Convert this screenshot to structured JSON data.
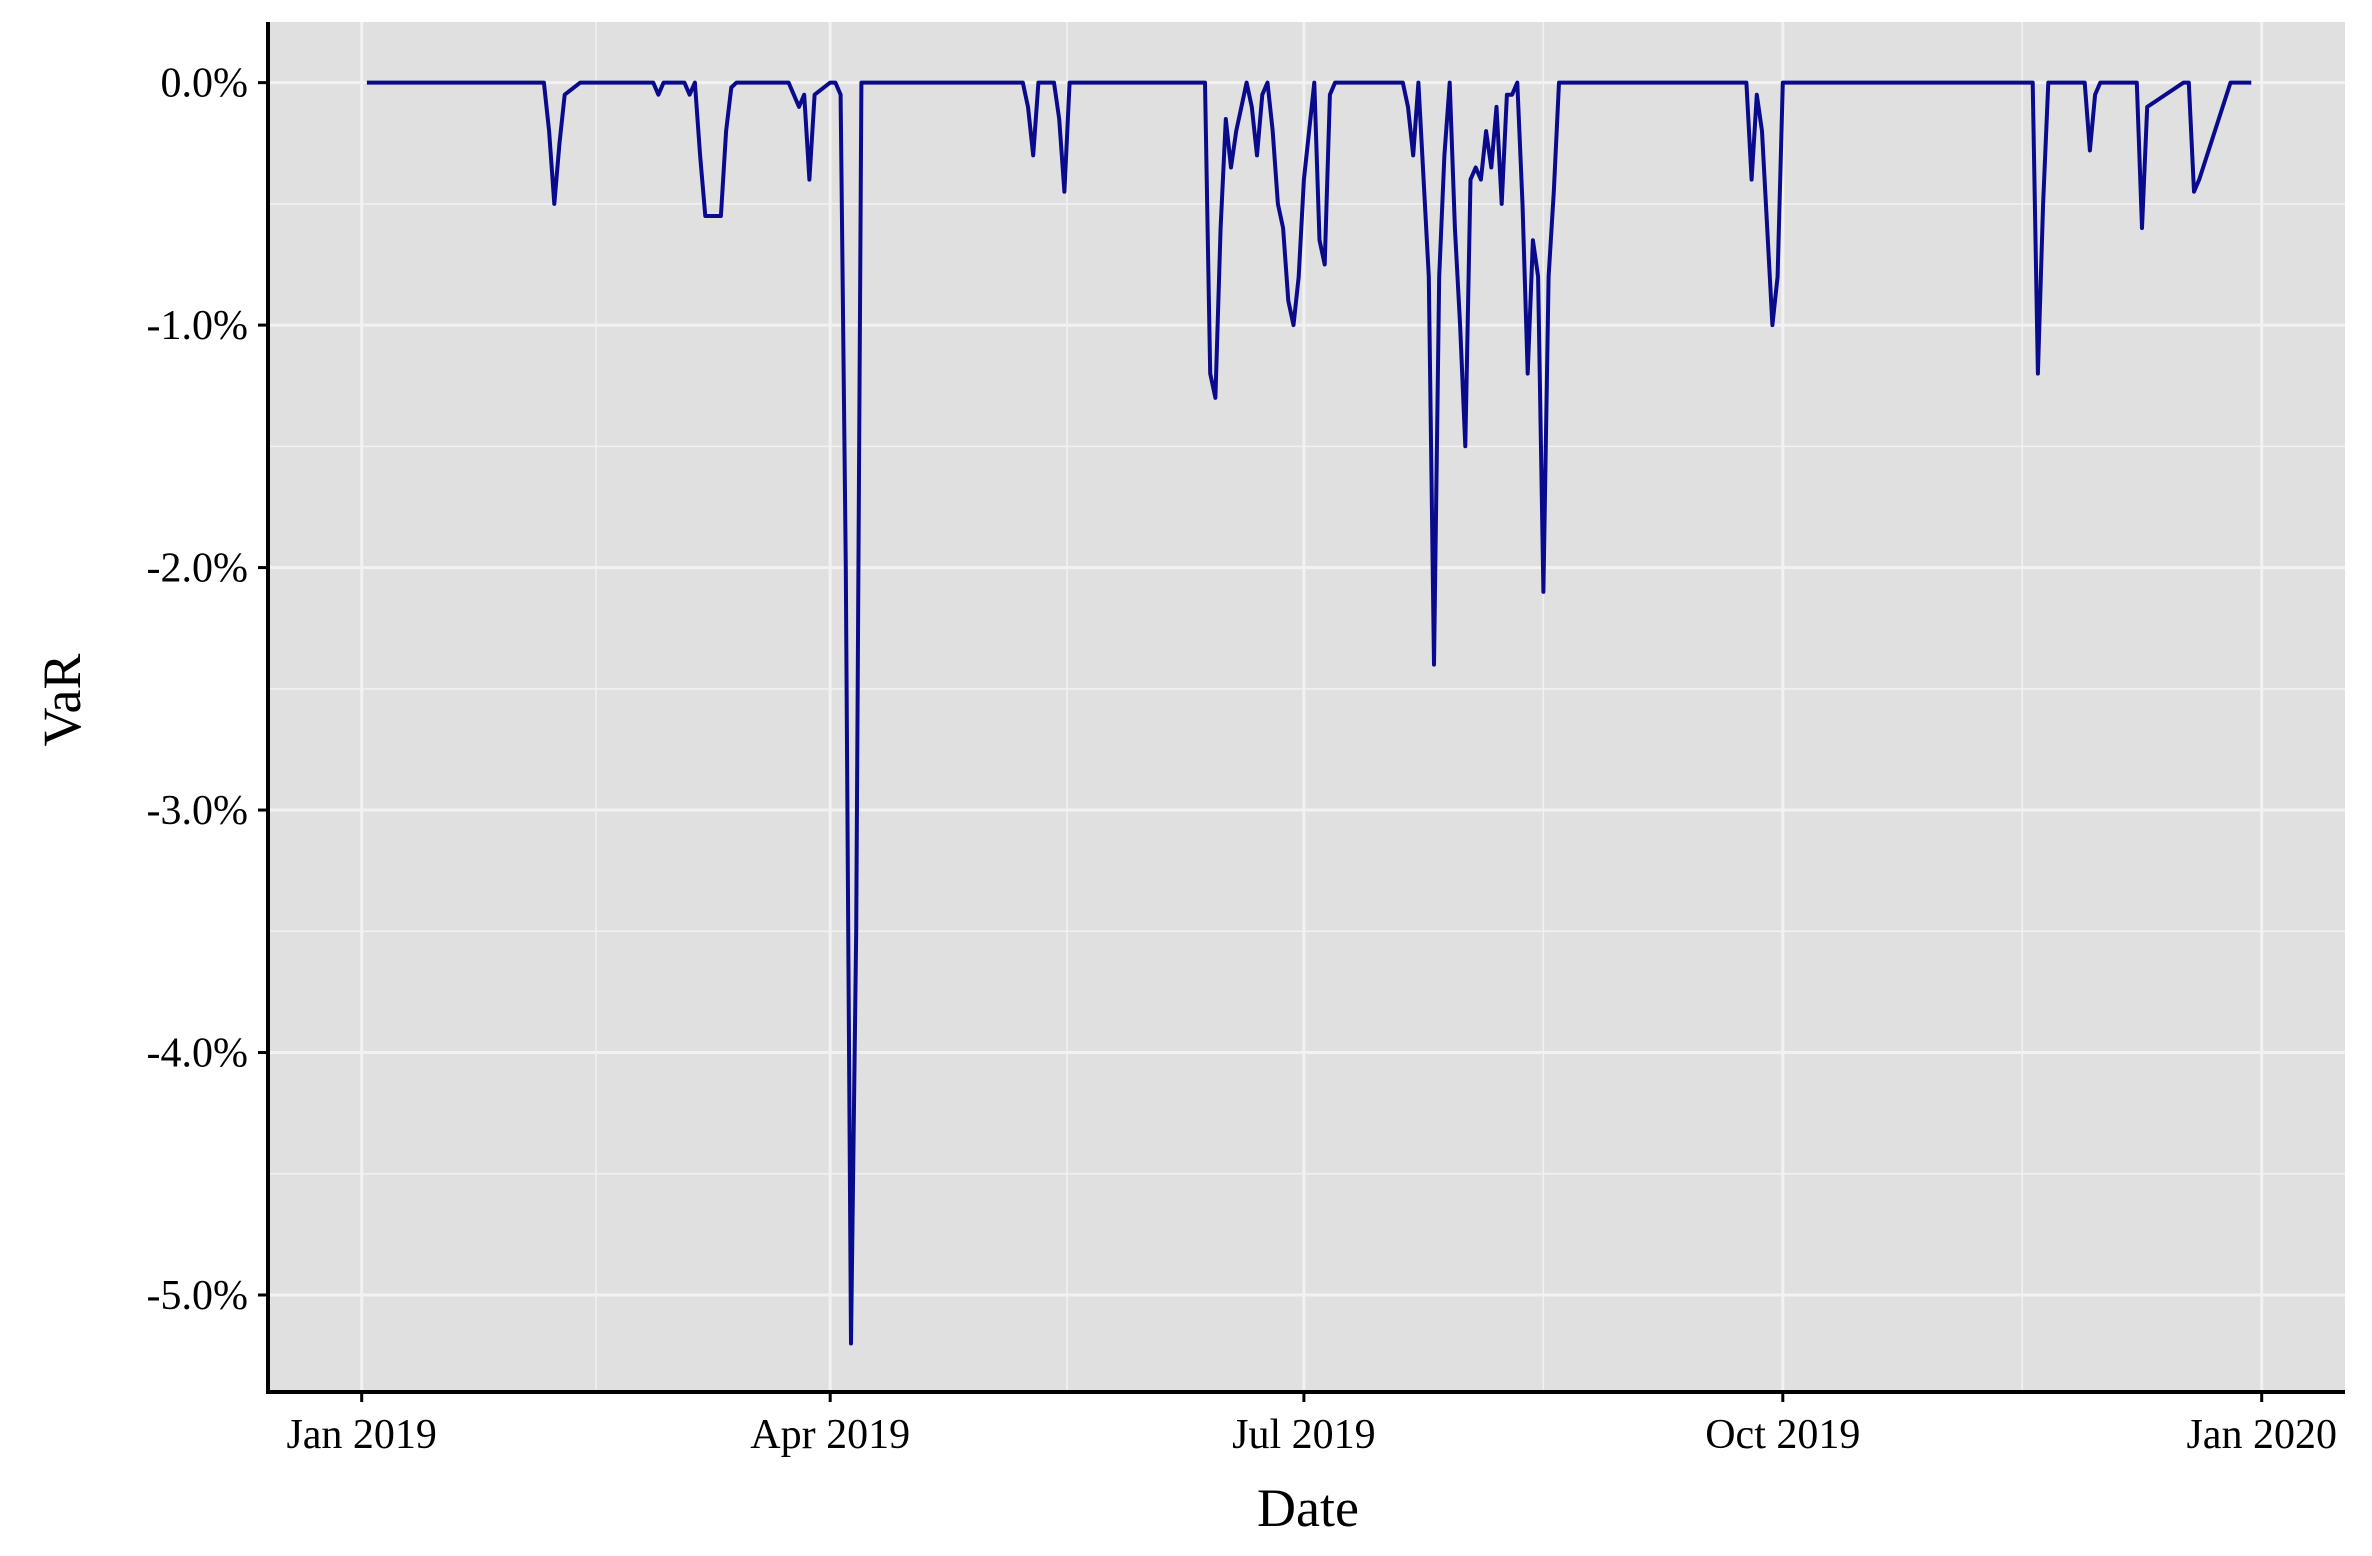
{
  "chart_data": {
    "type": "line",
    "title": "",
    "xlabel": "Date",
    "ylabel": "VaR",
    "x_ticks": [
      "Jan 2019",
      "Apr 2019",
      "Jul 2019",
      "Oct 2019",
      "Jan 2020"
    ],
    "y_ticks": [
      "0.0%",
      "-1.0%",
      "-2.0%",
      "-3.0%",
      "-4.0%",
      "-5.0%"
    ],
    "ylim": [
      -5.4,
      0.25
    ],
    "xlim": [
      "2018-12-14",
      "2020-01-17"
    ],
    "grid": true,
    "colors": {
      "panel": "#e0e0e0",
      "grid": "#f2f2f2",
      "line": "#0a0a8c"
    },
    "series": [
      {
        "x": [
          "2019-01-02",
          "2019-02-05",
          "2019-02-06",
          "2019-02-07",
          "2019-02-08",
          "2019-02-09",
          "2019-02-12",
          "2019-02-26",
          "2019-02-27",
          "2019-02-28",
          "2019-03-04",
          "2019-03-05",
          "2019-03-06",
          "2019-03-07",
          "2019-03-08",
          "2019-03-11",
          "2019-03-12",
          "2019-03-13",
          "2019-03-14",
          "2019-03-24",
          "2019-03-25",
          "2019-03-26",
          "2019-03-27",
          "2019-03-28",
          "2019-03-29",
          "2019-04-01",
          "2019-04-02",
          "2019-04-03",
          "2019-04-04",
          "2019-04-05",
          "2019-04-06",
          "2019-04-07",
          "2019-05-08",
          "2019-05-09",
          "2019-05-10",
          "2019-05-11",
          "2019-05-14",
          "2019-05-15",
          "2019-05-16",
          "2019-05-17",
          "2019-06-12",
          "2019-06-13",
          "2019-06-14",
          "2019-06-15",
          "2019-06-16",
          "2019-06-17",
          "2019-06-18",
          "2019-06-19",
          "2019-06-20",
          "2019-06-21",
          "2019-06-22",
          "2019-06-23",
          "2019-06-24",
          "2019-06-25",
          "2019-06-26",
          "2019-06-27",
          "2019-06-28",
          "2019-06-29",
          "2019-06-30",
          "2019-07-01",
          "2019-07-02",
          "2019-07-03",
          "2019-07-04",
          "2019-07-05",
          "2019-07-06",
          "2019-07-07",
          "2019-07-20",
          "2019-07-21",
          "2019-07-22",
          "2019-07-23",
          "2019-07-25",
          "2019-07-26",
          "2019-07-27",
          "2019-07-28",
          "2019-07-29",
          "2019-07-30",
          "2019-07-31",
          "2019-08-01",
          "2019-08-02",
          "2019-08-03",
          "2019-08-04",
          "2019-08-05",
          "2019-08-06",
          "2019-08-07",
          "2019-08-08",
          "2019-08-09",
          "2019-08-10",
          "2019-08-11",
          "2019-08-12",
          "2019-08-13",
          "2019-08-14",
          "2019-08-15",
          "2019-08-16",
          "2019-08-17",
          "2019-08-18",
          "2019-08-19",
          "2019-08-20",
          "2019-09-24",
          "2019-09-25",
          "2019-09-26",
          "2019-09-27",
          "2019-09-29",
          "2019-09-30",
          "2019-10-01",
          "2019-10-02",
          "2019-11-18",
          "2019-11-19",
          "2019-11-20",
          "2019-11-21",
          "2019-11-28",
          "2019-11-29",
          "2019-11-30",
          "2019-12-01",
          "2019-12-08",
          "2019-12-09",
          "2019-12-10",
          "2019-12-17",
          "2019-12-18",
          "2019-12-19",
          "2019-12-20",
          "2019-12-26",
          "2019-12-27",
          "2019-12-28",
          "2019-12-29",
          "2019-12-30"
        ],
        "y": [
          0,
          0,
          -0.2,
          -0.5,
          -0.25,
          -0.05,
          0,
          0,
          -0.05,
          0,
          0,
          -0.05,
          0,
          -0.3,
          -0.55,
          -0.55,
          -0.2,
          -0.02,
          0,
          0,
          -0.05,
          -0.1,
          -0.05,
          -0.4,
          -0.05,
          0,
          0,
          -0.05,
          -2.0,
          -5.2,
          -3.5,
          0,
          0,
          -0.1,
          -0.3,
          0,
          0,
          -0.15,
          -0.45,
          0,
          0,
          -1.2,
          -1.3,
          -0.6,
          -0.15,
          -0.35,
          -0.2,
          -0.1,
          0,
          -0.1,
          -0.3,
          -0.05,
          0,
          -0.2,
          -0.5,
          -0.6,
          -0.9,
          -1.0,
          -0.8,
          -0.4,
          -0.2,
          0,
          -0.65,
          -0.75,
          -0.05,
          0,
          0,
          -0.1,
          -0.3,
          0,
          -0.8,
          -2.4,
          -0.8,
          -0.3,
          0,
          -0.6,
          -1.0,
          -1.5,
          -0.4,
          -0.35,
          -0.4,
          -0.2,
          -0.35,
          -0.1,
          -0.5,
          -0.05,
          -0.05,
          0,
          -0.5,
          -1.2,
          -0.65,
          -0.8,
          -2.1,
          -0.8,
          -0.45,
          0,
          0,
          0,
          -0.4,
          -0.05,
          -0.2,
          -1.0,
          -0.8,
          0,
          0,
          0,
          -1.2,
          -0.5,
          0,
          0,
          -0.28,
          -0.05,
          0,
          0,
          -0.6,
          -0.1,
          0,
          0,
          -0.45,
          -0.4,
          0,
          0,
          0,
          0,
          0
        ]
      }
    ]
  }
}
